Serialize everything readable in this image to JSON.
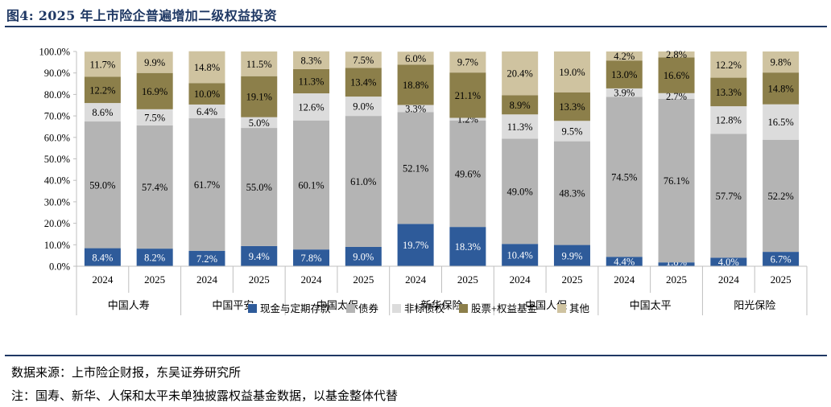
{
  "title": "图4:  2025 年上市险企普遍增加二级权益投资",
  "source_note": "数据来源：上市险企财报，东吴证券研究所",
  "footnote": "注：国寿、新华、人保和太平未单独披露权益基金数据，以基金整体代替",
  "chart_data": {
    "type": "bar",
    "stacked": true,
    "title": "",
    "ylim": [
      0,
      100
    ],
    "ytick_step": 10,
    "y_tick_format": "percent_1dp",
    "grid": false,
    "legend_position": "bottom",
    "categories": [
      "2024",
      "2025",
      "2024",
      "2025",
      "2024",
      "2025",
      "2024",
      "2025",
      "2024",
      "2025",
      "2024",
      "2025",
      "2024",
      "2025"
    ],
    "groups": [
      {
        "name": "中国人寿",
        "categories": [
          "2024",
          "2025"
        ]
      },
      {
        "name": "中国平安",
        "categories": [
          "2024",
          "2025"
        ]
      },
      {
        "name": "中国太保",
        "categories": [
          "2024",
          "2025"
        ]
      },
      {
        "name": "新华保险",
        "categories": [
          "2024",
          "2025"
        ]
      },
      {
        "name": "中国人保",
        "categories": [
          "2024",
          "2025"
        ]
      },
      {
        "name": "中国太平",
        "categories": [
          "2024",
          "2025"
        ]
      },
      {
        "name": "阳光保险",
        "categories": [
          "2024",
          "2025"
        ]
      }
    ],
    "series": [
      {
        "name": "现金与定期存款",
        "color": "#2e5b9a",
        "label_color": "#ffffff",
        "values": [
          8.4,
          8.2,
          7.2,
          9.4,
          7.8,
          9.0,
          19.7,
          18.3,
          10.4,
          9.9,
          4.4,
          1.8,
          4.0,
          6.7
        ]
      },
      {
        "name": "债券",
        "color": "#b4b4b4",
        "label_color": "#000000",
        "values": [
          59.0,
          57.4,
          61.7,
          55.0,
          60.1,
          61.0,
          52.1,
          49.6,
          49.0,
          48.3,
          74.5,
          76.1,
          57.7,
          52.2
        ]
      },
      {
        "name": "非标债权",
        "color": "#dcdcdc",
        "label_color": "#000000",
        "values": [
          8.6,
          7.5,
          6.4,
          5.0,
          12.6,
          9.0,
          3.3,
          1.2,
          11.3,
          9.5,
          3.9,
          2.7,
          12.8,
          16.5
        ]
      },
      {
        "name": "股票+权益基金",
        "color": "#8c7f4a",
        "label_color": "#000000",
        "values": [
          12.2,
          16.9,
          10.0,
          19.1,
          11.3,
          13.4,
          18.8,
          21.1,
          8.9,
          13.3,
          13.0,
          16.6,
          13.3,
          14.8
        ]
      },
      {
        "name": "其他",
        "color": "#cfc3a0",
        "label_color": "#000000",
        "values": [
          11.7,
          9.9,
          14.8,
          11.5,
          8.3,
          7.5,
          6.0,
          9.7,
          20.4,
          19.0,
          4.2,
          2.8,
          12.2,
          9.8
        ]
      }
    ]
  }
}
